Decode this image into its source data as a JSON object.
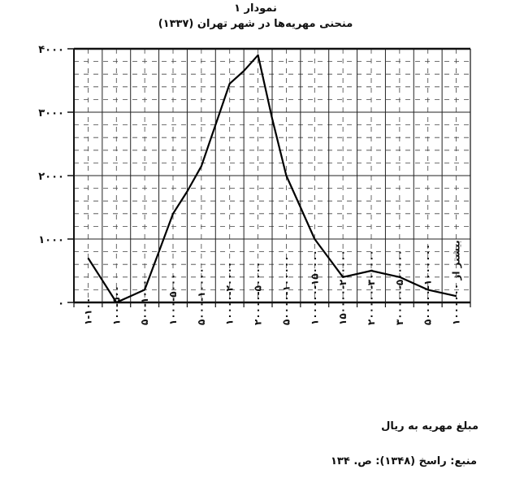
{
  "chart_data": {
    "type": "line",
    "title": "نمودار ۱",
    "subtitle": "منحنی مهریه‌ها در شهر تهران (۱۳۳۷)",
    "xlabel": "مبلغ مهریه به ریال",
    "ylabel": "",
    "source": "منبع: راسخ (۱۳۴۸): ص. ۱۳۴",
    "categories": [
      "۱-۱۰۰",
      "۱۰۰-۵۰۰",
      "۵۰۰-۱۰۰۰",
      "۱۰۰۰-۵۰۰۰",
      "۵۰۰۰-۱۰۰۰۰",
      "۱۰۰۰۰-۲۰۰۰۰",
      "۲۰۰۰۰-۵۰۰۰۰",
      "۵۰۰۰۰-۱۰۰۰۰۰",
      "۱۰۰۰۰۰-۱۵۰۰۰۰",
      "۱۵۰۰۰۰-۲۰۰۰۰۰",
      "۲۰۰۰۰۰-۳۰۰۰۰۰",
      "۳۰۰۰۰۰-۵۰۰۰۰۰",
      "۵۰۰۰۰۰-۱۰۰۰۰۰۰",
      "بیشتر از ۱۰۰۰۰۰۰"
    ],
    "x": [
      0.5,
      1,
      1.5,
      2,
      2.5,
      3,
      3.5,
      4,
      4.5,
      5,
      5.5,
      6,
      6.5,
      7,
      7.5,
      8,
      8.5,
      9,
      9.5,
      10,
      10.5,
      11,
      11.5,
      12,
      12.5,
      13,
      13.5
    ],
    "values": [
      700,
      350,
      0,
      100,
      200,
      800,
      1400,
      1750,
      2150,
      2800,
      3450,
      3650,
      3900,
      2900,
      2000,
      1500,
      1000,
      700,
      400,
      450,
      500,
      450,
      400,
      300,
      200,
      150,
      100
    ],
    "yticks": [
      "۰",
      "۱۰۰۰",
      "۲۰۰۰",
      "۳۰۰۰",
      "۴۰۰۰"
    ],
    "ylim": [
      0,
      4000
    ],
    "grid": true
  }
}
